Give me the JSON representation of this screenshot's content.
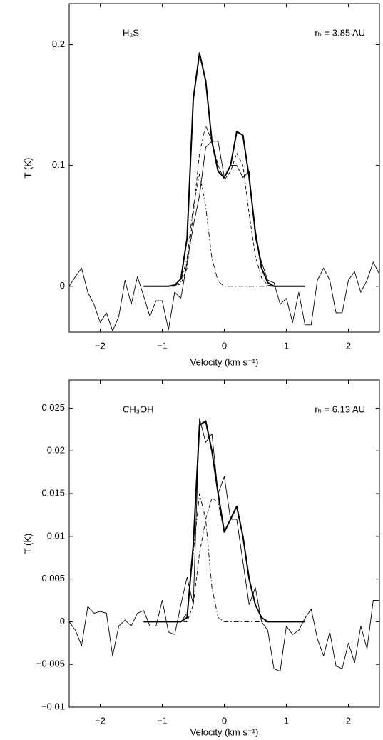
{
  "chart_data": [
    {
      "type": "line",
      "xlabel": "Velocity (km s⁻¹)",
      "ylabel": "T (K)",
      "annotations": [
        "H₂S",
        "rₕ = 3.85 AU"
      ],
      "xlim": [
        -2.5,
        2.5
      ],
      "ylim": [
        -0.038,
        0.234
      ],
      "xticks": [
        {
          "value": -2,
          "label": "−2"
        },
        {
          "value": -1,
          "label": "−1"
        },
        0,
        1,
        2
      ],
      "yticks": [
        0,
        0.1,
        0.2
      ],
      "series": [
        {
          "color": "#000000",
          "line_style": "solid",
          "line_width": 0.9,
          "x": [
            -2.5,
            -2.4,
            -2.3,
            -2.2,
            -2.1,
            -2.0,
            -1.9,
            -1.8,
            -1.7,
            -1.6,
            -1.5,
            -1.4,
            -1.3,
            -1.2,
            -1.1,
            -1.0,
            -0.9,
            -0.8,
            -0.7,
            -0.6,
            -0.5,
            -0.4,
            -0.3,
            -0.2,
            -0.1,
            0.0,
            0.1,
            0.2,
            0.3,
            0.4,
            0.5,
            0.6,
            0.7,
            0.8,
            0.9,
            1.0,
            1.1,
            1.2,
            1.3,
            1.4,
            1.5,
            1.6,
            1.7,
            1.8,
            1.9,
            2.0,
            2.1,
            2.2,
            2.3,
            2.4,
            2.5
          ],
          "values": [
            0.0,
            0.008,
            0.015,
            -0.005,
            -0.015,
            -0.03,
            -0.022,
            -0.037,
            -0.025,
            0.005,
            -0.015,
            0.008,
            -0.008,
            -0.025,
            -0.012,
            -0.012,
            -0.036,
            -0.005,
            -0.01,
            0.02,
            0.05,
            0.075,
            0.115,
            0.12,
            0.12,
            0.09,
            0.1,
            0.1,
            0.09,
            0.095,
            0.04,
            0.02,
            0.005,
            0.003,
            -0.015,
            -0.01,
            -0.03,
            -0.005,
            -0.032,
            -0.032,
            0.005,
            0.015,
            0.005,
            -0.022,
            -0.022,
            0.005,
            0.012,
            -0.005,
            0.005,
            0.02,
            0.01
          ]
        },
        {
          "color": "#000000",
          "line_style": "solid",
          "line_width": 2,
          "x": [
            -1.3,
            -1.2,
            -1.1,
            -1.0,
            -0.9,
            -0.8,
            -0.7,
            -0.6,
            -0.5,
            -0.4,
            -0.3,
            -0.2,
            -0.1,
            0.0,
            0.1,
            0.2,
            0.3,
            0.4,
            0.5,
            0.6,
            0.7,
            0.8,
            0.9,
            1.0,
            1.1,
            1.2,
            1.3
          ],
          "values": [
            0,
            0,
            0,
            0,
            0,
            0.001,
            0.006,
            0.04,
            0.155,
            0.193,
            0.17,
            0.12,
            0.095,
            0.09,
            0.1,
            0.128,
            0.125,
            0.09,
            0.045,
            0.015,
            0.003,
            0,
            0,
            0,
            0,
            0,
            0
          ]
        },
        {
          "color": "#000000",
          "line_style": "dashed",
          "line_width": 0.9,
          "x": [
            -1.3,
            -1.2,
            -1.1,
            -1.0,
            -0.9,
            -0.8,
            -0.7,
            -0.6,
            -0.5,
            -0.4,
            -0.3,
            -0.2,
            -0.1,
            0.0,
            0.1,
            0.2,
            0.3,
            0.4,
            0.5,
            0.6,
            0.7,
            0.8,
            0.9,
            1.0,
            1.1,
            1.2,
            1.3
          ],
          "values": [
            0,
            0,
            0,
            0,
            0,
            0,
            0.002,
            0.015,
            0.06,
            0.11,
            0.133,
            0.12,
            0.1,
            0.088,
            0.095,
            0.11,
            0.1,
            0.06,
            0.025,
            0.007,
            0.001,
            0,
            0,
            0,
            0,
            0,
            0
          ]
        },
        {
          "color": "#000000",
          "line_style": "dashdot",
          "line_width": 0.9,
          "x": [
            -1.3,
            -1.2,
            -1.1,
            -1.0,
            -0.9,
            -0.8,
            -0.7,
            -0.6,
            -0.5,
            -0.4,
            -0.3,
            -0.2,
            -0.1,
            0.0,
            0.1,
            0.2,
            0.3,
            0.4,
            0.5,
            0.6,
            0.7,
            0.8,
            0.9,
            1.0,
            1.1,
            1.2,
            1.3
          ],
          "values": [
            0,
            0,
            0,
            0,
            0,
            0,
            0.004,
            0.023,
            0.066,
            0.093,
            0.066,
            0.023,
            0.004,
            0,
            0,
            0,
            0,
            0,
            0,
            0,
            0,
            0,
            0,
            0,
            0,
            0,
            0
          ]
        }
      ]
    },
    {
      "type": "line",
      "xlabel": "Velocity (km s⁻¹)",
      "ylabel": "T (K)",
      "annotations": [
        "CH₃OH",
        "rₕ = 6.13 AU"
      ],
      "xlim": [
        -2.5,
        2.5
      ],
      "ylim": [
        -0.01,
        0.0283
      ],
      "xticks": [
        {
          "value": -2,
          "label": "−2"
        },
        {
          "value": -1,
          "label": "−1"
        },
        0,
        1,
        2
      ],
      "yticks": [
        {
          "value": -0.01,
          "label": "−0.01"
        },
        {
          "value": -0.005,
          "label": "−0.005"
        },
        0,
        0.005,
        0.01,
        0.015,
        0.02,
        0.025
      ],
      "series": [
        {
          "color": "#000000",
          "line_style": "solid",
          "line_width": 0.9,
          "x": [
            -2.5,
            -2.4,
            -2.3,
            -2.2,
            -2.1,
            -2.0,
            -1.9,
            -1.8,
            -1.7,
            -1.6,
            -1.5,
            -1.4,
            -1.3,
            -1.2,
            -1.1,
            -1.0,
            -0.9,
            -0.8,
            -0.7,
            -0.6,
            -0.5,
            -0.4,
            -0.3,
            -0.2,
            -0.1,
            0.0,
            0.1,
            0.2,
            0.3,
            0.4,
            0.5,
            0.6,
            0.7,
            0.8,
            0.9,
            1.0,
            1.1,
            1.2,
            1.3,
            1.4,
            1.5,
            1.6,
            1.7,
            1.8,
            1.9,
            2.0,
            2.1,
            2.2,
            2.3,
            2.4,
            2.5
          ],
          "values": [
            0,
            -0.001,
            -0.0028,
            0.0018,
            0.001,
            0.0012,
            0.001,
            -0.004,
            -0.0005,
            0.0002,
            -0.0005,
            0.001,
            0.0013,
            -0.0005,
            -0.0005,
            0.0025,
            -0.0012,
            -0.0015,
            0.002,
            0.0052,
            0.002,
            0.0238,
            0.021,
            0.022,
            0.015,
            0.017,
            0.012,
            0.012,
            0.007,
            0.002,
            0.004,
            0,
            -0.001,
            -0.0055,
            -0.0058,
            -0.0005,
            -0.0015,
            -0.001,
            0.0004,
            0.0015,
            -0.002,
            -0.004,
            -0.0012,
            -0.0052,
            -0.0055,
            -0.0025,
            -0.0048,
            -0.0005,
            -0.0032,
            0.0025,
            0.0025
          ]
        },
        {
          "color": "#000000",
          "line_style": "solid",
          "line_width": 2,
          "x": [
            -1.3,
            -1.2,
            -1.1,
            -1.0,
            -0.9,
            -0.8,
            -0.7,
            -0.6,
            -0.5,
            -0.4,
            -0.3,
            -0.2,
            -0.1,
            0.0,
            0.1,
            0.2,
            0.3,
            0.4,
            0.5,
            0.6,
            0.7,
            0.8,
            0.9,
            1.0,
            1.1,
            1.2,
            1.3
          ],
          "values": [
            0,
            0,
            0,
            0,
            0,
            0,
            0,
            0.0005,
            0.009,
            0.023,
            0.0235,
            0.02,
            0.015,
            0.0105,
            0.012,
            0.0135,
            0.01,
            0.005,
            0.002,
            0.0005,
            0,
            0,
            0,
            0,
            0,
            0,
            0
          ]
        },
        {
          "color": "#000000",
          "line_style": "dashed",
          "line_width": 0.9,
          "x": [
            -1.3,
            -1.2,
            -1.1,
            -1.0,
            -0.9,
            -0.8,
            -0.7,
            -0.6,
            -0.5,
            -0.4,
            -0.3,
            -0.2,
            -0.1,
            0.0,
            0.1,
            0.2,
            0.3,
            0.4,
            0.5,
            0.6,
            0.7,
            0.8,
            0.9,
            1.0,
            1.1,
            1.2,
            1.3
          ],
          "values": [
            0,
            0,
            0,
            0,
            0,
            0,
            0,
            0,
            0.002,
            0.008,
            0.012,
            0.0145,
            0.014,
            0.0105,
            0.012,
            0.0135,
            0.01,
            0.005,
            0.002,
            0.0005,
            0,
            0,
            0,
            0,
            0,
            0,
            0
          ]
        },
        {
          "color": "#000000",
          "line_style": "dashdot",
          "line_width": 0.9,
          "x": [
            -1.3,
            -1.2,
            -1.1,
            -1.0,
            -0.9,
            -0.8,
            -0.7,
            -0.6,
            -0.5,
            -0.4,
            -0.3,
            -0.2,
            -0.1,
            0.0,
            0.1,
            0.2,
            0.3,
            0.4,
            0.5,
            0.6,
            0.7,
            0.8,
            0.9,
            1.0,
            1.1,
            1.2,
            1.3
          ],
          "values": [
            0,
            0,
            0,
            0,
            0,
            0,
            0,
            0.001,
            0.008,
            0.015,
            0.012,
            0.004,
            0.0005,
            0,
            0,
            0,
            0,
            0,
            0,
            0,
            0,
            0,
            0,
            0,
            0,
            0,
            0
          ]
        }
      ]
    }
  ]
}
